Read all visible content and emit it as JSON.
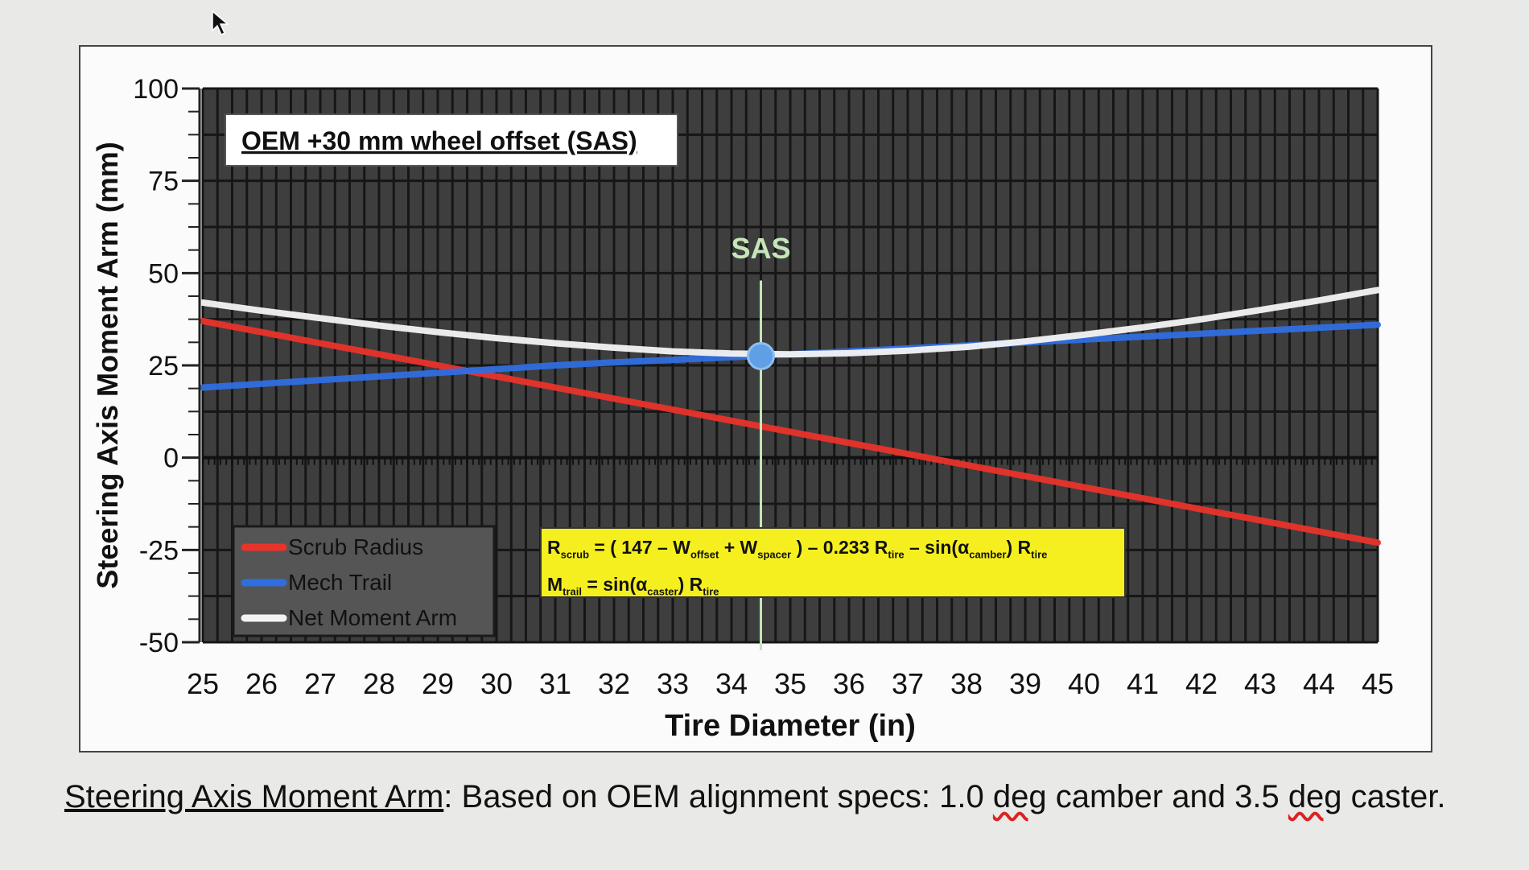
{
  "chart_data": {
    "type": "line",
    "title": "OEM +30 mm wheel offset (SAS)",
    "xlabel": "Tire Diameter (in)",
    "ylabel": "Steering Axis Moment Arm (mm)",
    "xlim": [
      25,
      45
    ],
    "ylim": [
      -50,
      100
    ],
    "x_ticks": [
      25,
      26,
      27,
      28,
      29,
      30,
      31,
      32,
      33,
      34,
      35,
      36,
      37,
      38,
      39,
      40,
      41,
      42,
      43,
      44,
      45
    ],
    "y_ticks": [
      100,
      75,
      50,
      25,
      0,
      -25,
      -50
    ],
    "grid": true,
    "legend_position": "bottom-left",
    "series": [
      {
        "name": "Scrub Radius",
        "color": "#e8332a",
        "x": [
          25,
          26,
          27,
          28,
          29,
          30,
          31,
          32,
          33,
          34,
          35,
          36,
          37,
          38,
          39,
          40,
          41,
          42,
          43,
          44,
          45
        ],
        "y": [
          37,
          34,
          31,
          28,
          25,
          22,
          19,
          16,
          13,
          10,
          7,
          4,
          1,
          -2,
          -5,
          -8,
          -11,
          -14,
          -17,
          -20,
          -23
        ]
      },
      {
        "name": "Mech Trail",
        "color": "#2f6ee0",
        "x": [
          25,
          26,
          27,
          28,
          29,
          30,
          31,
          32,
          33,
          34,
          35,
          36,
          37,
          38,
          39,
          40,
          41,
          42,
          43,
          44,
          45
        ],
        "y": [
          19,
          20,
          21,
          22,
          23,
          24,
          25,
          25.8,
          26.5,
          27.2,
          28,
          28.8,
          29.6,
          30.4,
          31.2,
          32,
          32.8,
          33.6,
          34.4,
          35.2,
          36
        ]
      },
      {
        "name": "Net Moment Arm",
        "color": "#f4f4f4",
        "x": [
          25,
          26,
          27,
          28,
          29,
          30,
          31,
          32,
          33,
          34,
          35,
          36,
          37,
          38,
          39,
          40,
          41,
          42,
          43,
          44,
          45
        ],
        "y": [
          42,
          39.8,
          37.8,
          35.8,
          34,
          32.4,
          31,
          29.8,
          28.8,
          28.2,
          28,
          28.3,
          29,
          30,
          31.5,
          33.3,
          35.3,
          37.5,
          40,
          42.6,
          45.4
        ]
      }
    ],
    "annotations": {
      "sas_label": "SAS",
      "sas_x": 34.5,
      "sas_y": 27.5,
      "formula_line1": "R<sub>scrub</sub> = ( 147 – W<sub>offset</sub> + W<sub>spacer</sub> ) – 0.233 R<sub>tire</sub> – sin(α<sub>camber</sub>) R<sub>tire</sub>",
      "formula_line2": "M<sub>trail</sub> = sin(α<sub>caster</sub>) R<sub>tire</sub>"
    }
  },
  "caption": {
    "lead": "Steering Axis Moment Arm",
    "text_a": ": Based on OEM alignment specs: 1.0 ",
    "deg1": "deg",
    "text_b": " camber and 3.5 ",
    "deg2": "deg",
    "text_c": " caster."
  },
  "colors": {
    "plot_bg": "#3e3e3e",
    "grid": "#161616",
    "formula_bg": "#f5ef1f",
    "sas_line": "#c4e6b8"
  }
}
